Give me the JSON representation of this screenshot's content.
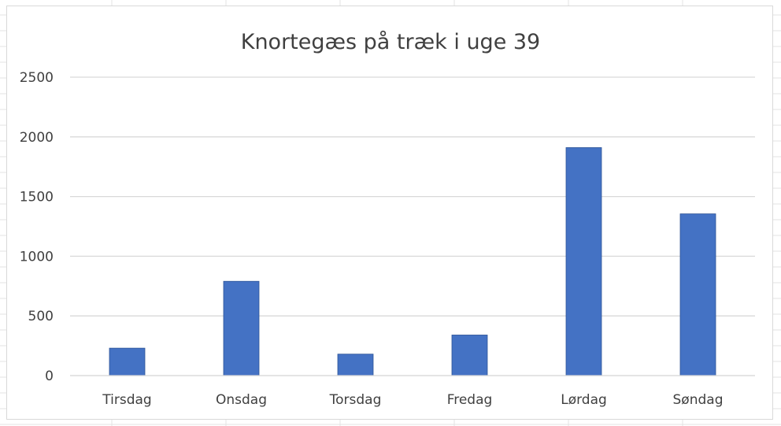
{
  "chart_data": {
    "type": "bar",
    "title": "Knortegæs på træk i uge 39",
    "categories": [
      "Tirsdag",
      "Onsdag",
      "Torsdag",
      "Fredag",
      "Lørdag",
      "Søndag"
    ],
    "series": [
      {
        "values": [
          230,
          790,
          180,
          340,
          1910,
          1355
        ]
      }
    ],
    "ylim": [
      0,
      2500
    ],
    "yticks": [
      0,
      500,
      1000,
      1500,
      2000,
      2500
    ],
    "ytick_labels": [
      "0",
      "500",
      "1000",
      "1500",
      "2000",
      "2500"
    ],
    "xlabel": "",
    "ylabel": "",
    "grid": true,
    "legend": "none",
    "colors": {
      "bar": "#4472c4",
      "bar_edge": "#2f5597",
      "gridline": "#d9d9d9",
      "tick_text": "#404040",
      "title_text": "#404040"
    }
  }
}
